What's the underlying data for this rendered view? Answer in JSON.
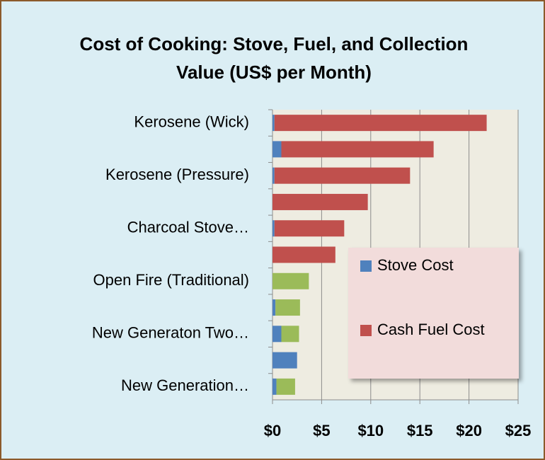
{
  "chart_data": {
    "type": "stacked_barh",
    "title": "Cost of Cooking:  Stove, Fuel, and Collection Value (US$ per Month)",
    "categories": [
      "Kerosene (Wick)",
      null,
      "Kerosene (Pressure)",
      null,
      "Charcoal Stove…",
      null,
      "Open Fire (Traditional)",
      null,
      "New Generaton Two…",
      null,
      "New Generation…"
    ],
    "series": [
      {
        "name": "Stove Cost",
        "color": "#4f81bd",
        "values": [
          0.2,
          0.9,
          0.2,
          0,
          0.2,
          0,
          0,
          0.3,
          0.9,
          2.5,
          0.4
        ]
      },
      {
        "name": "Cash Fuel Cost",
        "color": "#c0504d",
        "values": [
          21.6,
          15.5,
          13.8,
          9.7,
          7.1,
          6.4,
          0,
          0,
          0,
          0,
          0
        ]
      },
      {
        "color": "#9bbb59",
        "values": [
          0,
          0,
          0,
          0,
          0,
          0,
          3.7,
          2.5,
          1.8,
          0,
          1.9
        ]
      }
    ],
    "xlim": [
      0,
      25
    ],
    "xticks": [
      {
        "value": 0,
        "label": "$0"
      },
      {
        "value": 5,
        "label": "$5"
      },
      {
        "value": 10,
        "label": "$10"
      },
      {
        "value": 15,
        "label": "$15"
      },
      {
        "value": 20,
        "label": "$20"
      },
      {
        "value": 25,
        "label": "$25"
      }
    ],
    "grid": true
  }
}
